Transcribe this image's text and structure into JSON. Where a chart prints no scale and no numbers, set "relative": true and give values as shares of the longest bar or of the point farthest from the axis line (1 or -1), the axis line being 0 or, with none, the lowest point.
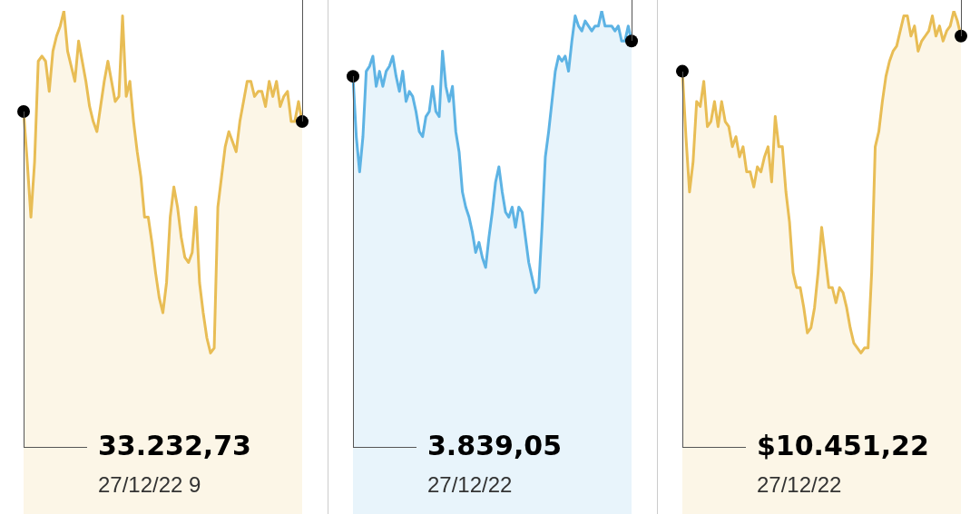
{
  "chart_data": [
    {
      "type": "area",
      "relative": true,
      "categories": [
        null,
        null,
        null,
        null,
        null,
        null,
        null,
        null,
        null,
        null,
        null,
        null,
        null,
        null,
        null,
        null,
        null,
        null,
        null,
        null,
        null,
        null,
        null,
        null,
        null,
        null,
        null,
        null,
        null,
        null,
        null,
        null,
        null,
        null,
        null,
        null,
        null,
        null,
        null,
        null,
        null,
        null,
        null,
        null,
        null,
        null,
        null,
        null,
        null,
        null,
        null,
        null,
        null,
        null,
        null,
        null,
        null,
        null,
        null,
        null,
        null,
        null,
        null,
        null,
        null,
        null,
        null,
        null,
        null,
        null,
        null,
        null,
        null,
        null,
        null,
        null,
        null
      ],
      "series": [
        {
          "color": "#e8bd55",
          "values": [
            0.8,
            0.7,
            0.59,
            0.7,
            0.9,
            0.91,
            0.9,
            0.84,
            0.92,
            0.95,
            0.97,
            1.0,
            0.92,
            0.89,
            0.86,
            0.94,
            0.9,
            0.86,
            0.81,
            0.78,
            0.76,
            0.81,
            0.86,
            0.9,
            0.86,
            0.82,
            0.83,
            0.99,
            0.83,
            0.86,
            0.78,
            0.72,
            0.67,
            0.59,
            0.59,
            0.54,
            0.48,
            0.43,
            0.4,
            0.46,
            0.59,
            0.65,
            0.61,
            0.55,
            0.51,
            0.5,
            0.52,
            0.61,
            0.46,
            0.4,
            0.35,
            0.32,
            0.33,
            0.61,
            0.67,
            0.73,
            0.76,
            0.74,
            0.72,
            0.78,
            0.82,
            0.86,
            0.86,
            0.83,
            0.84,
            0.84,
            0.81,
            0.86,
            0.83,
            0.86,
            0.81,
            0.83,
            0.84,
            0.78,
            0.78,
            0.82,
            0.78
          ]
        }
      ],
      "annotations": [
        "33.232,73",
        "27/12/22 9"
      ]
    },
    {
      "type": "area",
      "relative": true,
      "categories": [
        null,
        null,
        null,
        null,
        null,
        null,
        null,
        null,
        null,
        null,
        null,
        null,
        null,
        null,
        null,
        null,
        null,
        null,
        null,
        null,
        null,
        null,
        null,
        null,
        null,
        null,
        null,
        null,
        null,
        null,
        null,
        null,
        null,
        null,
        null,
        null,
        null,
        null,
        null,
        null,
        null,
        null,
        null,
        null,
        null,
        null,
        null,
        null,
        null,
        null,
        null,
        null,
        null,
        null,
        null,
        null,
        null,
        null,
        null,
        null,
        null,
        null,
        null,
        null,
        null,
        null,
        null,
        null,
        null,
        null,
        null,
        null,
        null,
        null,
        null,
        null,
        null,
        null,
        null,
        null,
        null,
        null,
        null,
        null,
        null
      ],
      "series": [
        {
          "color": "#5db3e4",
          "values": [
            0.87,
            0.75,
            0.68,
            0.75,
            0.88,
            0.89,
            0.91,
            0.85,
            0.88,
            0.85,
            0.88,
            0.89,
            0.91,
            0.87,
            0.84,
            0.88,
            0.82,
            0.84,
            0.83,
            0.8,
            0.76,
            0.75,
            0.79,
            0.8,
            0.85,
            0.8,
            0.79,
            0.92,
            0.85,
            0.82,
            0.85,
            0.76,
            0.72,
            0.64,
            0.61,
            0.59,
            0.56,
            0.52,
            0.54,
            0.51,
            0.49,
            0.55,
            0.6,
            0.66,
            0.69,
            0.64,
            0.6,
            0.59,
            0.61,
            0.57,
            0.61,
            0.6,
            0.55,
            0.5,
            0.47,
            0.44,
            0.45,
            0.57,
            0.71,
            0.76,
            0.82,
            0.88,
            0.91,
            0.9,
            0.91,
            0.88,
            0.94,
            0.99,
            0.97,
            0.96,
            0.98,
            0.97,
            0.96,
            0.97,
            0.97,
            1.0,
            0.97,
            0.97,
            0.97,
            0.96,
            0.97,
            0.94,
            0.94,
            0.97,
            0.94
          ]
        }
      ],
      "annotations": [
        "3.839,05",
        "27/12/22"
      ]
    },
    {
      "type": "area",
      "relative": true,
      "categories": [
        null,
        null,
        null,
        null,
        null,
        null,
        null,
        null,
        null,
        null,
        null,
        null,
        null,
        null,
        null,
        null,
        null,
        null,
        null,
        null,
        null,
        null,
        null,
        null,
        null,
        null,
        null,
        null,
        null,
        null,
        null,
        null,
        null,
        null,
        null,
        null,
        null,
        null,
        null,
        null,
        null,
        null,
        null,
        null,
        null,
        null,
        null,
        null,
        null,
        null,
        null,
        null,
        null,
        null,
        null,
        null,
        null,
        null,
        null,
        null,
        null,
        null,
        null,
        null,
        null,
        null,
        null,
        null,
        null,
        null,
        null,
        null,
        null,
        null,
        null,
        null,
        null,
        null,
        null
      ],
      "series": [
        {
          "color": "#e8bd55",
          "values": [
            0.88,
            0.75,
            0.64,
            0.7,
            0.82,
            0.81,
            0.86,
            0.77,
            0.78,
            0.82,
            0.77,
            0.82,
            0.78,
            0.77,
            0.73,
            0.75,
            0.71,
            0.73,
            0.68,
            0.68,
            0.65,
            0.69,
            0.68,
            0.71,
            0.73,
            0.66,
            0.79,
            0.73,
            0.73,
            0.64,
            0.58,
            0.48,
            0.45,
            0.45,
            0.41,
            0.36,
            0.37,
            0.41,
            0.48,
            0.57,
            0.51,
            0.45,
            0.45,
            0.42,
            0.45,
            0.44,
            0.41,
            0.37,
            0.34,
            0.33,
            0.32,
            0.33,
            0.33,
            0.48,
            0.73,
            0.76,
            0.82,
            0.87,
            0.9,
            0.92,
            0.93,
            0.96,
            0.99,
            0.99,
            0.95,
            0.97,
            0.92,
            0.94,
            0.95,
            0.96,
            0.99,
            0.95,
            0.97,
            0.94,
            0.96,
            0.97,
            1.0,
            0.98,
            0.95
          ]
        }
      ],
      "annotations": [
        "$10.451,22",
        "27/12/22"
      ]
    }
  ]
}
